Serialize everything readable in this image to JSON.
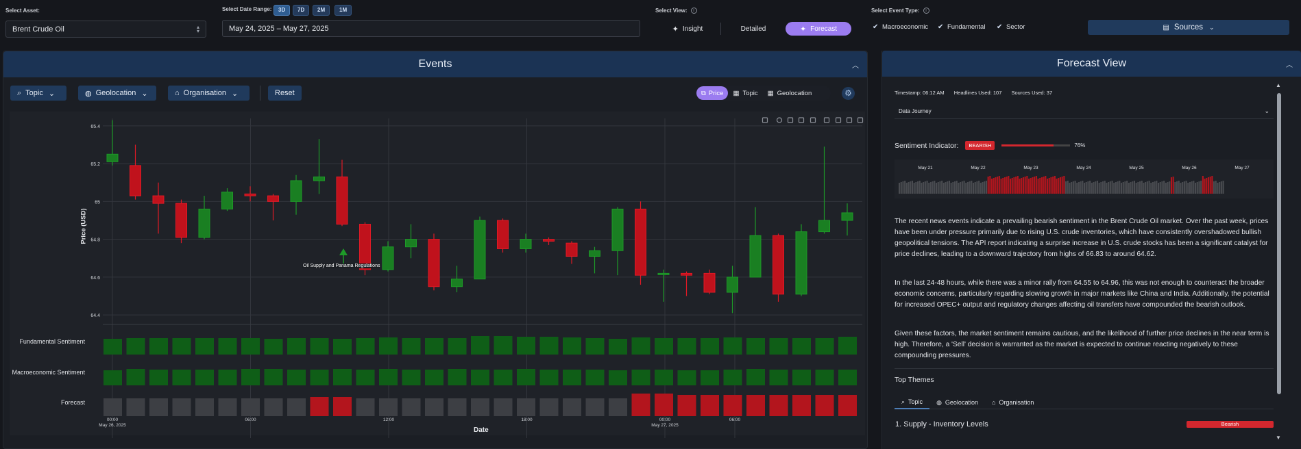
{
  "header": {
    "asset_label": "Select Asset:",
    "asset_value": "Brent Crude Oil",
    "range_label": "Select Date Range:",
    "range_options": [
      "3D",
      "7D",
      "2M",
      "1M"
    ],
    "date_range": "May 24, 2025 – May 27, 2025",
    "view_label": "Select View:",
    "views": [
      "Insight",
      "Detailed",
      "Forecast"
    ],
    "active_view": "Forecast",
    "event_type_label": "Select Event Type:",
    "event_types": [
      "Macroeconomic",
      "Fundamental",
      "Sector"
    ],
    "sources_label": "Sources"
  },
  "events_panel": {
    "title": "Events",
    "filters": [
      "Topic",
      "Geolocation",
      "Organisation"
    ],
    "reset_label": "Reset",
    "modes": [
      "Price",
      "Topic",
      "Geolocation"
    ],
    "active_mode": "Price",
    "annotation": "Oil Supply and Panama Regulations",
    "row_labels": [
      "Fundamental Sentiment",
      "Macroeconomic Sentiment",
      "Forecast"
    ]
  },
  "chart_data": {
    "type": "candlestick",
    "ylabel": "Price (USD)",
    "xlabel": "Date",
    "ylim": [
      64.35,
      65.45
    ],
    "y_ticks": [
      "65.4",
      "65.2",
      "65",
      "64.8",
      "64.6",
      "64.4"
    ],
    "x_ticks": [
      {
        "time": "00:00",
        "date": "May 26, 2025"
      },
      {
        "time": "06:00",
        "date": ""
      },
      {
        "time": "12:00",
        "date": ""
      },
      {
        "time": "18:00",
        "date": ""
      },
      {
        "time": "00:00",
        "date": "May 27, 2025"
      },
      {
        "time": "06:00",
        "date": ""
      }
    ],
    "candles": [
      [
        65.21,
        65.25,
        65.43,
        65.19
      ],
      [
        65.19,
        65.03,
        65.3,
        65.01
      ],
      [
        65.03,
        64.99,
        65.1,
        64.83
      ],
      [
        64.99,
        64.81,
        65.01,
        64.78
      ],
      [
        64.81,
        64.96,
        65.03,
        64.8
      ],
      [
        64.96,
        65.05,
        65.07,
        64.95
      ],
      [
        65.04,
        65.03,
        65.08,
        65.0
      ],
      [
        65.03,
        65.0,
        65.04,
        64.9
      ],
      [
        65.0,
        65.11,
        65.14,
        64.93
      ],
      [
        65.11,
        65.13,
        65.33,
        65.04
      ],
      [
        65.13,
        64.88,
        65.22,
        64.87
      ],
      [
        64.88,
        64.64,
        64.89,
        64.61
      ],
      [
        64.64,
        64.76,
        64.79,
        64.63
      ],
      [
        64.76,
        64.8,
        64.88,
        64.7
      ],
      [
        64.8,
        64.55,
        64.83,
        64.53
      ],
      [
        64.55,
        64.59,
        64.66,
        64.52
      ],
      [
        64.59,
        64.9,
        64.92,
        64.59
      ],
      [
        64.9,
        64.75,
        64.91,
        64.73
      ],
      [
        64.75,
        64.8,
        64.83,
        64.73
      ],
      [
        64.8,
        64.79,
        64.81,
        64.77
      ],
      [
        64.78,
        64.71,
        64.79,
        64.67
      ],
      [
        64.71,
        64.74,
        64.76,
        64.62
      ],
      [
        64.74,
        64.96,
        64.97,
        64.61
      ],
      [
        64.96,
        64.61,
        65.0,
        64.56
      ],
      [
        64.62,
        64.62,
        64.64,
        64.47
      ],
      [
        64.62,
        64.61,
        64.63,
        64.5
      ],
      [
        64.62,
        64.52,
        64.64,
        64.51
      ],
      [
        64.52,
        64.6,
        64.66,
        64.41
      ],
      [
        64.6,
        64.82,
        64.97,
        64.6
      ],
      [
        64.82,
        64.51,
        64.83,
        64.47
      ],
      [
        64.51,
        64.84,
        64.88,
        64.5
      ],
      [
        64.84,
        64.9,
        65.29,
        64.83
      ],
      [
        64.9,
        64.94,
        64.99,
        64.82
      ]
    ],
    "forecast_colors": [
      "grey",
      "grey",
      "grey",
      "grey",
      "grey",
      "grey",
      "grey",
      "grey",
      "grey",
      "red",
      "red",
      "grey",
      "grey",
      "grey",
      "grey",
      "grey",
      "grey",
      "grey",
      "grey",
      "grey",
      "grey",
      "grey",
      "grey",
      "red",
      "red",
      "red",
      "red",
      "red",
      "red",
      "red",
      "red",
      "red",
      "red"
    ]
  },
  "forecast_panel": {
    "title": "Forecast View",
    "timestamp": "Timestamp: 06:12 AM",
    "headlines": "Headlines Used: 107",
    "sources_used": "Sources Used: 37",
    "data_journey": "Data Journey",
    "sentiment_label": "Sentiment Indicator:",
    "sentiment_badge": "BEARISH",
    "sentiment_percent": "76%",
    "sentiment_value": 0.76,
    "timeline_dates": [
      "May 21",
      "May 22",
      "May 23",
      "May 24",
      "May 25",
      "May 26",
      "May 27"
    ],
    "paragraphs": [
      "The recent news events indicate a prevailing bearish sentiment in the Brent Crude Oil market. Over the past week, prices have been under pressure primarily due to rising U.S. crude inventories, which have consistently overshadowed bullish geopolitical tensions. The API report indicating a surprise increase in U.S. crude stocks has been a significant catalyst for price declines, leading to a downward trajectory from highs of 66.83 to around 64.62.",
      "In the last 24-48 hours, while there was a minor rally from 64.55 to 64.96, this was not enough to counteract the broader economic concerns, particularly regarding slowing growth in major markets like China and India. Additionally, the potential for increased OPEC+ output and regulatory changes affecting oil transfers have compounded the bearish outlook.",
      "Given these factors, the market sentiment remains cautious, and the likelihood of further price declines in the near term is high. Therefore, a 'Sell' decision is warranted as the market is expected to continue reacting negatively to these compounding pressures."
    ],
    "themes_title": "Top Themes",
    "theme_tabs": [
      "Topic",
      "Geolocation",
      "Organisation"
    ],
    "theme1": "1. Supply - Inventory Levels",
    "theme1_badge": "Bearish"
  }
}
